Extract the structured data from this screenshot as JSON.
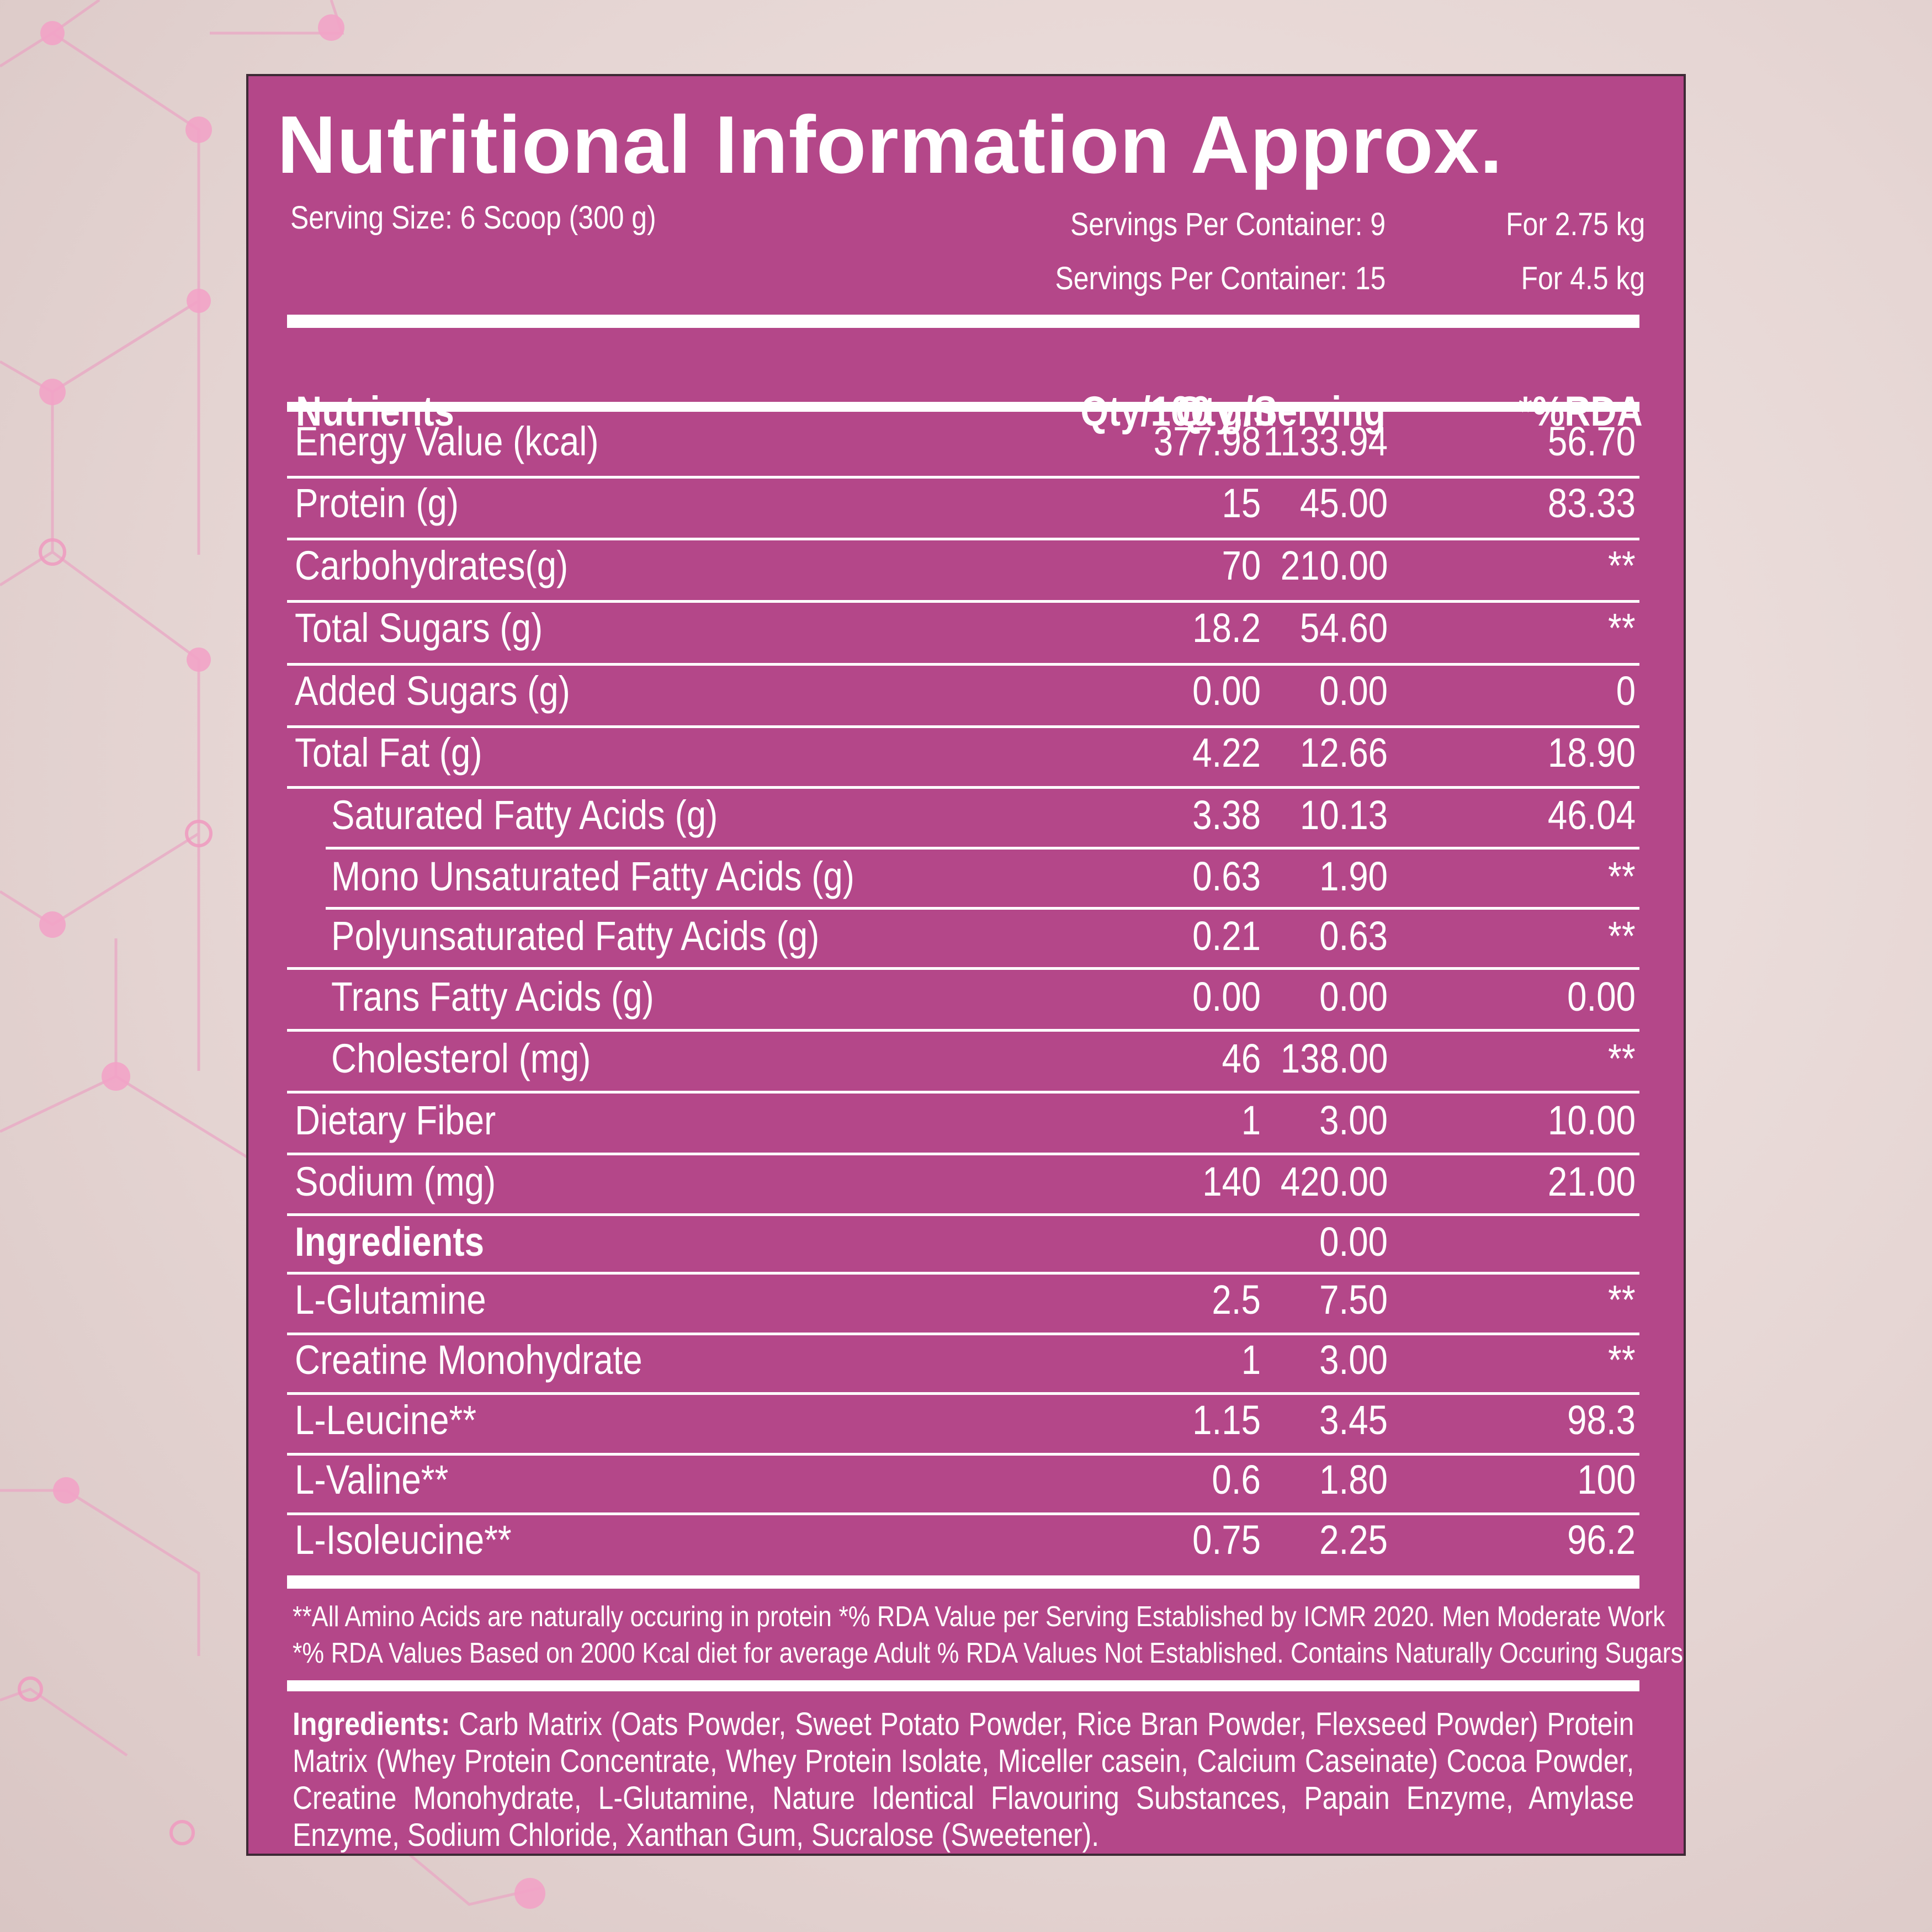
{
  "title": "Nutritional Information Approx.",
  "serving": {
    "size": "Serving Size: 6 Scoop (300 g)",
    "containers": [
      {
        "servings": "Servings Per Container: 9",
        "pack": "For 2.75 kg"
      },
      {
        "servings": "Servings Per Container: 15",
        "pack": "For 4.5 kg"
      }
    ]
  },
  "table": {
    "headers": [
      "Nutrients",
      "Qty/100 gm",
      "Qty./Serving",
      "*%RDA"
    ],
    "rows": [
      {
        "name": "Energy Value (kcal)",
        "per100": "377.98",
        "serving": "1133.94",
        "rda": "56.70"
      },
      {
        "name": "Protein (g)",
        "per100": "15",
        "serving": "45.00",
        "rda": "83.33"
      },
      {
        "name": "Carbohydrates(g)",
        "per100": "70",
        "serving": "210.00",
        "rda": "**"
      },
      {
        "name": "Total Sugars (g)",
        "per100": "18.2",
        "serving": "54.60",
        "rda": "**"
      },
      {
        "name": "Added Sugars (g)",
        "per100": "0.00",
        "serving": "0.00",
        "rda": "0"
      },
      {
        "name": "Total Fat (g)",
        "per100": "4.22",
        "serving": "12.66",
        "rda": "18.90"
      },
      {
        "name": "Saturated Fatty Acids (g)",
        "per100": "3.38",
        "serving": "10.13",
        "rda": "46.04"
      },
      {
        "name": "Mono Unsaturated Fatty Acids (g)",
        "per100": "0.63",
        "serving": "1.90",
        "rda": "**"
      },
      {
        "name": "Polyunsaturated Fatty Acids (g)",
        "per100": "0.21",
        "serving": "0.63",
        "rda": "**"
      },
      {
        "name": "Trans Fatty Acids (g)",
        "per100": "0.00",
        "serving": "0.00",
        "rda": "0.00"
      },
      {
        "name": "Cholesterol (mg)",
        "per100": "46",
        "serving": "138.00",
        "rda": "**"
      },
      {
        "name": "Dietary Fiber",
        "per100": "1",
        "serving": "3.00",
        "rda": "10.00"
      },
      {
        "name": "Sodium (mg)",
        "per100": "140",
        "serving": "420.00",
        "rda": "21.00"
      },
      {
        "name": "Ingredients",
        "per100": "",
        "serving": "0.00",
        "rda": ""
      },
      {
        "name": "L-Glutamine",
        "per100": "2.5",
        "serving": "7.50",
        "rda": "**"
      },
      {
        "name": "Creatine Monohydrate",
        "per100": "1",
        "serving": "3.00",
        "rda": "**"
      },
      {
        "name": "L-Leucine**",
        "per100": "1.15",
        "serving": "3.45",
        "rda": "98.3"
      },
      {
        "name": "L-Valine**",
        "per100": "0.6",
        "serving": "1.80",
        "rda": "100"
      },
      {
        "name": "L-Isoleucine**",
        "per100": "0.75",
        "serving": "2.25",
        "rda": "96.2"
      }
    ]
  },
  "footnotes": [
    "**All Amino Acids are naturally occuring in protein *% RDA Value per Serving Established by ICMR 2020. Men Moderate Work",
    "*% RDA Values Based on 2000 Kcal diet for average Adult % RDA Values Not Established. Contains Naturally Occuring Sugars"
  ],
  "ingredients": {
    "label": "Ingredients:",
    "text": " Carb Matrix (Oats Powder, Sweet Potato Powder, Rice Bran Powder, Flexseed Powder) Protein Matrix (Whey Protein Concentrate, Whey Protein Isolate, Miceller casein, Calcium Caseinate) Cocoa Powder, Creatine Monohydrate, L-Glutamine, Nature Identical Flavouring Substances, Papain Enzyme, Amylase Enzyme, Sodium Chloride, Xanthan Gum, Sucralose (Sweetener)."
  },
  "colors": {
    "panel": "#b44789",
    "background": "#e6d6d4",
    "pattern": "#e79bbd",
    "text": "#ffffff"
  }
}
